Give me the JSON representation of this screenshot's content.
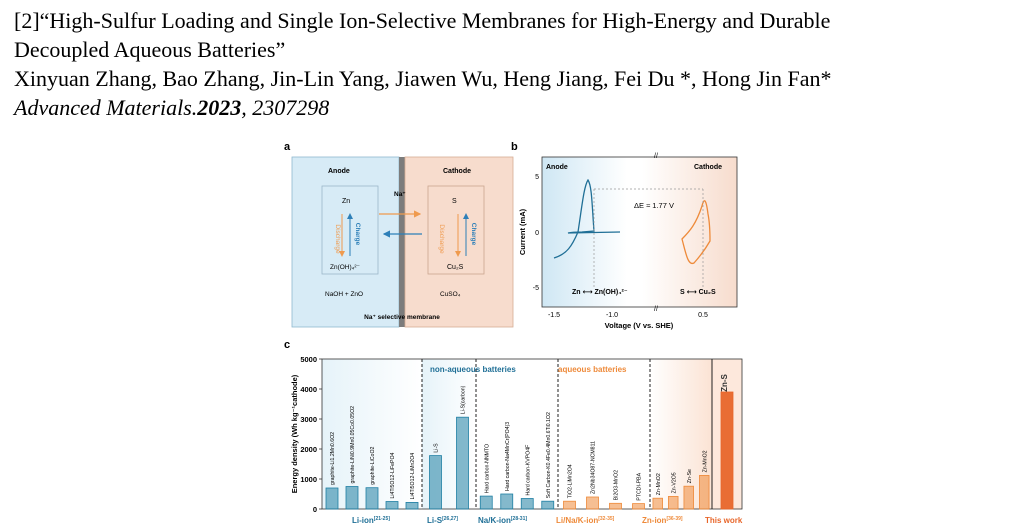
{
  "reference": {
    "line1": "[2]“High-Sulfur Loading and Single Ion-Selective Membranes for High-Energy and Durable",
    "line2": "Decoupled Aqueous Batteries”",
    "authors": "Xinyuan Zhang, Bao Zhang, Jin-Lin Yang, Jiawen Wu, Heng Jiang, Fei Du *, Hong Jin Fan*",
    "journal": "Advanced Materials.",
    "year": "2023",
    "article": ", 2307298"
  },
  "panel_a": {
    "letter": "a",
    "anode": "Anode",
    "cathode": "Cathode",
    "na_ion": "Na⁺",
    "zn": "Zn",
    "zn_product": "Zn(OH)₄²⁻",
    "s": "S",
    "cu2s": "Cu₂S",
    "discharge": "Discharge",
    "charge": "Charge",
    "anolyte": "NaOH + ZnO",
    "catholyte": "CuSO₄",
    "membrane": "Na⁺ selective membrane",
    "colors": {
      "anode_bg": "#d7ebf6",
      "cathode_bg": "#f7dccd",
      "charge": "#2d7fb8",
      "discharge": "#ef9a4e"
    }
  },
  "panel_b": {
    "letter": "b",
    "anode": "Anode",
    "cathode": "Cathode",
    "delta_e": "ΔE ≈ 1.77 V",
    "anode_reaction": "Zn ⟷ Zn(OH)₄²⁻",
    "cathode_reaction": "S ⟷ Cu₂S",
    "xlabel": "Voltage (V vs. SHE)",
    "ylabel": "Current (mA)",
    "xticks": [
      "-1.5",
      "-1.0",
      "0.5"
    ],
    "yticks": [
      "5",
      "0",
      "-5"
    ],
    "colors": {
      "anode": "#1f6f96",
      "cathode": "#ee8a3a"
    }
  },
  "chart_data": {
    "type": "bar",
    "title": "",
    "ylabel": "Energy density (Wh kg⁻¹cathode)",
    "ylim": [
      0,
      5000
    ],
    "yticks": [
      "0",
      "1000",
      "2000",
      "3000",
      "4000",
      "5000"
    ],
    "groups": [
      {
        "name": "Li-ion",
        "ref": "[21-25]",
        "color": "#1f7fa3",
        "categories": [
          "graphite-Li1.2Mn0.6O2",
          "graphite-LiNi0.9Mn0.05Co0.05O2",
          "graphite-LiCoO2",
          "Li4Ti5O12-LiFePO4",
          "Li4Ti5O12-LiMn2O4"
        ],
        "values": [
          700,
          750,
          710,
          250,
          220
        ]
      },
      {
        "name": "Li-S",
        "ref": "[26,27]",
        "color": "#1f7fa3",
        "categories": [
          "Li-S",
          "Li-S(carbon)"
        ],
        "values": [
          1780,
          3060
        ]
      },
      {
        "name": "Na/K-ion",
        "ref": "[28-31]",
        "color": "#1f7fa3",
        "categories": [
          "Hard carbon-NNMTO",
          "Hard carbon-Na4MnCr(PO4)3",
          "Hard carbon-KVPO4F",
          "Soft Carbon-K0.4Fe0.4Mn0.6Ti0.1O2"
        ],
        "values": [
          430,
          500,
          350,
          260
        ]
      },
      {
        "name": "Li/Na/K-ion",
        "ref": "[32-35]",
        "color": "#ee8a3a",
        "categories": [
          "TiO2-LiMn2O4",
          "Zn2Nb34O87-NCM811",
          "Bi2O3-MnO2",
          "PTCDI-PBA"
        ],
        "values": [
          260,
          400,
          190,
          180
        ]
      },
      {
        "name": "Zn-ion",
        "ref": "[36-39]",
        "color": "#ee8a3a",
        "categories": [
          "Zn-MnO2",
          "Zn-V2O5",
          "Zn-Se",
          "Zn-MnO2"
        ],
        "values": [
          360,
          420,
          760,
          1120
        ]
      },
      {
        "name": "This work",
        "ref": "",
        "color": "#e8662a",
        "categories": [
          "Zn-S"
        ],
        "values": [
          3900
        ]
      }
    ],
    "region_labels": {
      "non_aqueous": "non-aqueous batteries",
      "aqueous": "aqueous batteries"
    },
    "group_labels": {
      "li_ion": "Li-ion",
      "li_ion_ref": "[21-25]",
      "li_s": "Li-S",
      "li_s_ref": "[26,27]",
      "na_k_ion": "Na/K-ion",
      "na_k_ion_ref": "[28-31]",
      "li_na_k_ion": "Li/Na/K-ion",
      "li_na_k_ion_ref": "[32-35]",
      "zn_ion": "Zn-ion",
      "zn_ion_ref": "[36-39]",
      "this_work": "This work"
    },
    "highlight": "Zn-S",
    "panel_letter": "c"
  }
}
